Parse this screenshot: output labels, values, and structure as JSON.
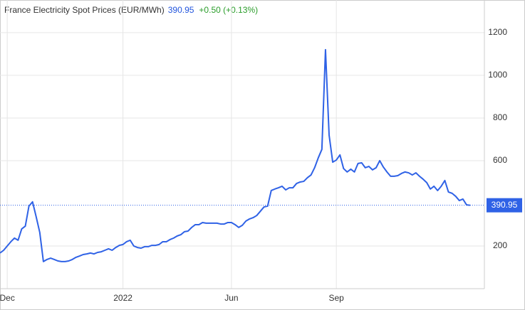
{
  "chart_data": {
    "type": "line",
    "title": "France Electricity Spot Prices (EUR/MWh)",
    "last_value": 390.95,
    "change": "+0.50 (+0.13%)",
    "color": "#2f62e6",
    "grid": true,
    "ylim": [
      0,
      1353
    ],
    "yticks": [
      200,
      600,
      800,
      1000,
      1200
    ],
    "categories": [
      null,
      null,
      "Dec",
      null,
      null,
      null,
      null,
      null,
      null,
      null,
      null,
      null,
      null,
      null,
      null,
      null,
      null,
      null,
      null,
      null,
      null,
      null,
      null,
      null,
      null,
      null,
      null,
      null,
      null,
      null,
      null,
      null,
      null,
      null,
      "2022",
      null,
      null,
      null,
      null,
      null,
      null,
      null,
      null,
      null,
      null,
      null,
      null,
      null,
      null,
      null,
      null,
      null,
      null,
      null,
      null,
      null,
      null,
      null,
      null,
      null,
      null,
      null,
      null,
      null,
      "Jun",
      null,
      null,
      null,
      null,
      null,
      null,
      null,
      null,
      null,
      null,
      null,
      null,
      null,
      null,
      null,
      null,
      null,
      null,
      null,
      null,
      null,
      null,
      null,
      null,
      null,
      null,
      null,
      null,
      "Sep",
      null,
      null,
      null,
      null,
      null,
      null,
      null,
      null,
      null,
      null,
      null,
      null,
      null,
      null,
      null,
      null,
      null,
      null,
      null,
      null,
      null,
      null,
      null,
      null,
      null,
      null,
      null,
      null,
      null,
      null,
      null,
      null,
      null,
      null,
      null,
      null,
      null
    ],
    "values": [
      167,
      180,
      200,
      220,
      237,
      227,
      280,
      293,
      387,
      407,
      337,
      263,
      127,
      137,
      143,
      137,
      130,
      127,
      127,
      130,
      137,
      147,
      153,
      160,
      163,
      167,
      163,
      170,
      173,
      180,
      187,
      180,
      193,
      203,
      207,
      220,
      227,
      200,
      193,
      190,
      197,
      197,
      203,
      203,
      207,
      220,
      220,
      230,
      237,
      247,
      253,
      267,
      270,
      287,
      300,
      300,
      310,
      307,
      307,
      307,
      307,
      303,
      303,
      310,
      310,
      300,
      287,
      297,
      317,
      327,
      333,
      343,
      363,
      383,
      387,
      460,
      467,
      473,
      480,
      463,
      473,
      473,
      493,
      500,
      503,
      520,
      533,
      567,
      613,
      653,
      1120,
      720,
      593,
      603,
      627,
      563,
      547,
      560,
      547,
      587,
      590,
      567,
      573,
      557,
      567,
      600,
      570,
      547,
      527,
      527,
      530,
      540,
      547,
      543,
      533,
      543,
      527,
      513,
      497,
      467,
      480,
      460,
      480,
      507,
      453,
      447,
      433,
      413,
      420,
      393,
      390.95
    ]
  }
}
